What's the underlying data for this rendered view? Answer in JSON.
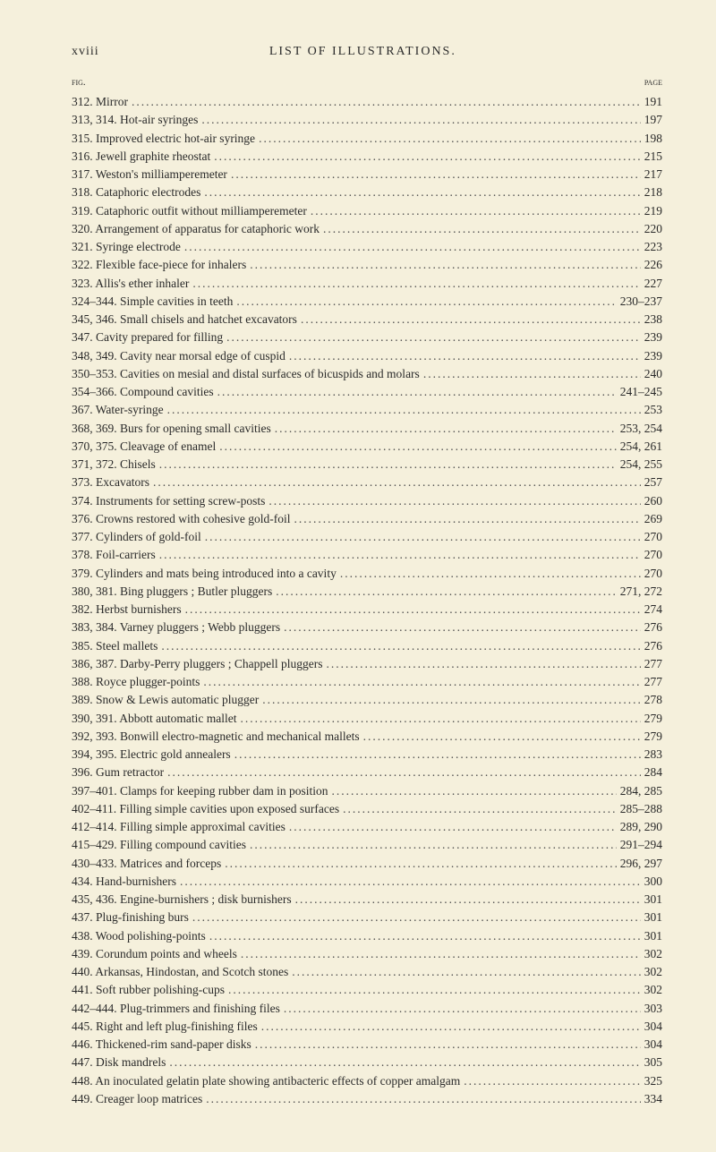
{
  "header": {
    "roman": "xviii",
    "title": "LIST OF ILLUSTRATIONS."
  },
  "columns": {
    "fig": "fig.",
    "page": "page"
  },
  "entries": [
    {
      "text": "312. Mirror",
      "page": "191"
    },
    {
      "text": "313, 314. Hot-air syringes",
      "page": "197"
    },
    {
      "text": "315. Improved electric hot-air syringe",
      "page": "198"
    },
    {
      "text": "316. Jewell graphite rheostat",
      "page": "215"
    },
    {
      "text": "317. Weston's milliamperemeter",
      "page": "217"
    },
    {
      "text": "318. Cataphoric electrodes",
      "page": "218"
    },
    {
      "text": "319. Cataphoric outfit without milliamperemeter",
      "page": "219"
    },
    {
      "text": "320. Arrangement of apparatus for cataphoric work",
      "page": "220"
    },
    {
      "text": "321. Syringe electrode",
      "page": "223"
    },
    {
      "text": "322. Flexible face-piece for inhalers",
      "page": "226"
    },
    {
      "text": "323. Allis's ether inhaler",
      "page": "227"
    },
    {
      "text": "324–344. Simple cavities in teeth",
      "page": "230–237"
    },
    {
      "text": "345, 346. Small chisels and hatchet excavators",
      "page": "238"
    },
    {
      "text": "347. Cavity prepared for filling",
      "page": "239"
    },
    {
      "text": "348, 349. Cavity near morsal edge of cuspid",
      "page": "239"
    },
    {
      "text": "350–353. Cavities on mesial and distal surfaces of bicuspids and molars",
      "page": "240"
    },
    {
      "text": "354–366. Compound cavities",
      "page": "241–245"
    },
    {
      "text": "367. Water-syringe",
      "page": "253"
    },
    {
      "text": "368, 369. Burs for opening small cavities",
      "page": "253, 254"
    },
    {
      "text": "370, 375. Cleavage of enamel",
      "page": "254, 261"
    },
    {
      "text": "371, 372. Chisels",
      "page": "254, 255"
    },
    {
      "text": "373. Excavators",
      "page": "257"
    },
    {
      "text": "374. Instruments for setting screw-posts",
      "page": "260"
    },
    {
      "text": "376. Crowns restored with cohesive gold-foil",
      "page": "269"
    },
    {
      "text": "377. Cylinders of gold-foil",
      "page": "270"
    },
    {
      "text": "378. Foil-carriers",
      "page": "270"
    },
    {
      "text": "379. Cylinders and mats being introduced into a cavity",
      "page": "270"
    },
    {
      "text": "380, 381. Bing pluggers ; Butler pluggers",
      "page": "271, 272"
    },
    {
      "text": "382. Herbst burnishers",
      "page": "274"
    },
    {
      "text": "383, 384. Varney pluggers ; Webb pluggers",
      "page": "276"
    },
    {
      "text": "385. Steel mallets",
      "page": "276"
    },
    {
      "text": "386, 387. Darby-Perry pluggers ; Chappell pluggers",
      "page": "277"
    },
    {
      "text": "388. Royce plugger-points",
      "page": "277"
    },
    {
      "text": "389. Snow & Lewis automatic plugger",
      "page": "278"
    },
    {
      "text": "390, 391. Abbott automatic mallet",
      "page": "279"
    },
    {
      "text": "392, 393. Bonwill electro-magnetic and mechanical mallets",
      "page": "279"
    },
    {
      "text": "394, 395. Electric gold annealers",
      "page": "283"
    },
    {
      "text": "396. Gum retractor",
      "page": "284"
    },
    {
      "text": "397–401. Clamps for keeping rubber dam in position",
      "page": "284, 285"
    },
    {
      "text": "402–411. Filling simple cavities upon exposed surfaces",
      "page": "285–288"
    },
    {
      "text": "412–414. Filling simple approximal cavities",
      "page": "289, 290"
    },
    {
      "text": "415–429. Filling compound cavities",
      "page": "291–294"
    },
    {
      "text": "430–433. Matrices and forceps",
      "page": "296, 297"
    },
    {
      "text": "434. Hand-burnishers",
      "page": "300"
    },
    {
      "text": "435, 436. Engine-burnishers ; disk burnishers",
      "page": "301"
    },
    {
      "text": "437. Plug-finishing burs",
      "page": "301"
    },
    {
      "text": "438. Wood polishing-points",
      "page": "301"
    },
    {
      "text": "439. Corundum points and wheels",
      "page": "302"
    },
    {
      "text": "440. Arkansas, Hindostan, and Scotch stones",
      "page": "302"
    },
    {
      "text": "441. Soft rubber polishing-cups",
      "page": "302"
    },
    {
      "text": "442–444. Plug-trimmers and finishing files",
      "page": "303"
    },
    {
      "text": "445. Right and left plug-finishing files",
      "page": "304"
    },
    {
      "text": "446. Thickened-rim sand-paper disks",
      "page": "304"
    },
    {
      "text": "447. Disk mandrels",
      "page": "305"
    },
    {
      "text": "448. An inoculated gelatin plate showing antibacteric effects of copper amalgam",
      "page": "325"
    },
    {
      "text": "449. Creager loop matrices",
      "page": "334"
    }
  ]
}
